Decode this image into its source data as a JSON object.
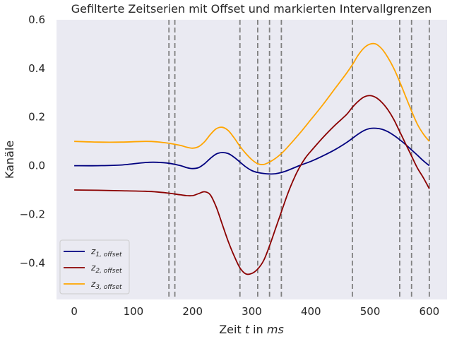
{
  "chart_data": {
    "type": "line",
    "title": "Gefilterte Zeitserien mit Offset und markierten Intervallgrenzen",
    "xlabel_prefix": "Zeit ",
    "xlabel_var": "t",
    "xlabel_mid": " in ",
    "xlabel_unit": "ms",
    "ylabel": "Kanäle",
    "xlim": [
      -30,
      630
    ],
    "ylim": [
      -0.55,
      0.6
    ],
    "xticks": [
      0,
      100,
      200,
      300,
      400,
      500,
      600
    ],
    "yticks": [
      -0.4,
      -0.2,
      0.0,
      0.2,
      0.4,
      0.6
    ],
    "ytick_labels": [
      "−0.4",
      "−0.2",
      "0.0",
      "0.2",
      "0.4",
      "0.6"
    ],
    "grid": false,
    "legend_position": "lower-left",
    "vlines": [
      160,
      170,
      280,
      310,
      330,
      350,
      470,
      550,
      570,
      600
    ],
    "series": [
      {
        "name": "z",
        "name_sub": "1, offset",
        "color": "#00007f",
        "x": [
          0,
          40,
          80,
          120,
          140,
          160,
          180,
          190,
          200,
          210,
          220,
          230,
          240,
          250,
          260,
          270,
          280,
          290,
          300,
          310,
          320,
          330,
          340,
          350,
          360,
          380,
          400,
          420,
          440,
          460,
          480,
          490,
          500,
          510,
          520,
          530,
          540,
          550,
          560,
          570,
          580,
          590,
          600
        ],
        "values": [
          0.0,
          0.0,
          0.003,
          0.013,
          0.014,
          0.01,
          0.0,
          -0.008,
          -0.012,
          -0.008,
          0.008,
          0.03,
          0.048,
          0.054,
          0.05,
          0.035,
          0.015,
          -0.005,
          -0.02,
          -0.028,
          -0.032,
          -0.034,
          -0.033,
          -0.028,
          -0.02,
          0.0,
          0.018,
          0.04,
          0.065,
          0.095,
          0.13,
          0.145,
          0.153,
          0.154,
          0.15,
          0.14,
          0.125,
          0.107,
          0.087,
          0.065,
          0.043,
          0.02,
          0.0
        ]
      },
      {
        "name": "z",
        "name_sub": "2, offset",
        "color": "#8b0000",
        "x": [
          0,
          40,
          80,
          120,
          140,
          160,
          180,
          190,
          200,
          210,
          220,
          230,
          240,
          250,
          260,
          270,
          280,
          290,
          300,
          310,
          320,
          330,
          340,
          350,
          360,
          370,
          380,
          390,
          400,
          420,
          440,
          460,
          470,
          480,
          490,
          500,
          510,
          520,
          530,
          540,
          550,
          560,
          570,
          580,
          590,
          600
        ],
        "values": [
          -0.1,
          -0.101,
          -0.103,
          -0.105,
          -0.108,
          -0.113,
          -0.12,
          -0.123,
          -0.123,
          -0.115,
          -0.107,
          -0.12,
          -0.17,
          -0.24,
          -0.31,
          -0.37,
          -0.42,
          -0.445,
          -0.443,
          -0.425,
          -0.39,
          -0.33,
          -0.26,
          -0.19,
          -0.12,
          -0.06,
          -0.01,
          0.03,
          0.06,
          0.115,
          0.165,
          0.21,
          0.24,
          0.265,
          0.283,
          0.288,
          0.28,
          0.26,
          0.23,
          0.19,
          0.14,
          0.09,
          0.04,
          -0.01,
          -0.05,
          -0.095
        ]
      },
      {
        "name": "z",
        "name_sub": "3, offset",
        "color": "#ffa500",
        "x": [
          0,
          40,
          80,
          120,
          140,
          160,
          180,
          190,
          200,
          210,
          220,
          230,
          240,
          250,
          260,
          270,
          280,
          290,
          300,
          310,
          320,
          330,
          340,
          350,
          360,
          380,
          400,
          420,
          440,
          460,
          470,
          480,
          490,
          500,
          510,
          520,
          530,
          540,
          550,
          560,
          570,
          580,
          590,
          600
        ],
        "values": [
          0.1,
          0.097,
          0.097,
          0.1,
          0.098,
          0.092,
          0.083,
          0.076,
          0.072,
          0.078,
          0.098,
          0.128,
          0.152,
          0.158,
          0.145,
          0.115,
          0.08,
          0.05,
          0.025,
          0.008,
          0.005,
          0.015,
          0.03,
          0.05,
          0.075,
          0.13,
          0.19,
          0.25,
          0.315,
          0.38,
          0.415,
          0.455,
          0.485,
          0.5,
          0.5,
          0.48,
          0.445,
          0.4,
          0.345,
          0.285,
          0.225,
          0.17,
          0.13,
          0.1
        ]
      }
    ]
  }
}
